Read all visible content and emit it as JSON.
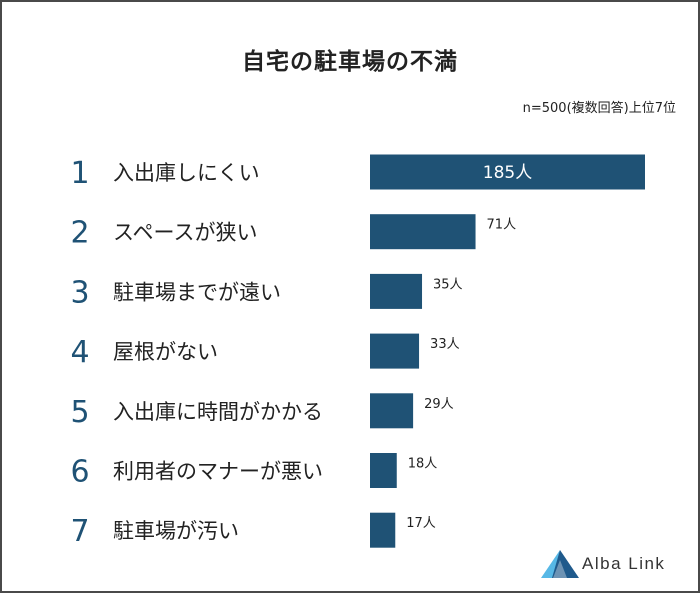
{
  "chart_data": {
    "type": "bar",
    "orientation": "horizontal",
    "title": "自宅の駐車場の不満",
    "note": "n=500(複数回答)上位7位",
    "ranks": [
      "1",
      "2",
      "3",
      "4",
      "5",
      "6",
      "7"
    ],
    "categories": [
      "入出庫しにくい",
      "スペースが狭い",
      "駐車場までが遠い",
      "屋根がない",
      "入出庫に時間がかかる",
      "利用者のマナーが悪い",
      "駐車場が汚い"
    ],
    "values": [
      185,
      71,
      35,
      33,
      29,
      18,
      17
    ],
    "value_labels": [
      "185人",
      "71人",
      "35人",
      "33人",
      "29人",
      "18人",
      "17人"
    ],
    "unit": "人",
    "xlim": [
      0,
      185
    ]
  },
  "colors": {
    "bar": "#1f5275",
    "rank": "#1f5275",
    "text": "#222222",
    "frame": "#4a4a4a",
    "logo_light": "#57b8e6",
    "logo_dark": "#1f5a8c"
  },
  "brand": {
    "name": "Alba Link",
    "icon": "alba-link-logo-icon"
  }
}
